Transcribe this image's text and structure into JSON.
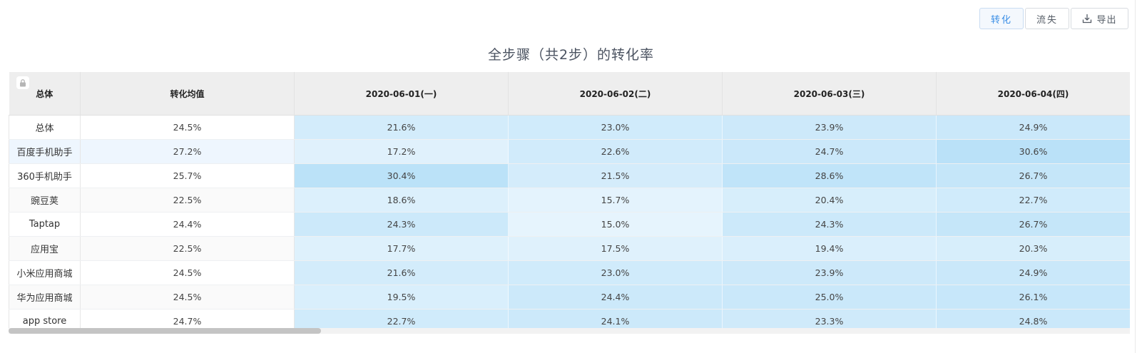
{
  "toolbar": {
    "conversion_label": "转化",
    "loss_label": "流失",
    "export_label": "导出"
  },
  "title": "全步骤（共2步）的转化率",
  "table": {
    "headers": {
      "name": "总体",
      "avg": "转化均值",
      "dates": [
        "2020-06-01(一)",
        "2020-06-02(二)",
        "2020-06-03(三)",
        "2020-06-04(四)"
      ]
    },
    "rows": [
      {
        "name": "总体",
        "avg": "24.5%",
        "values": [
          "21.6%",
          "23.0%",
          "23.9%",
          "24.9%"
        ]
      },
      {
        "name": "百度手机助手",
        "avg": "27.2%",
        "values": [
          "17.2%",
          "22.6%",
          "24.7%",
          "30.6%"
        ]
      },
      {
        "name": "360手机助手",
        "avg": "25.7%",
        "values": [
          "30.4%",
          "21.5%",
          "28.6%",
          "26.7%"
        ]
      },
      {
        "name": "豌豆荚",
        "avg": "22.5%",
        "values": [
          "18.6%",
          "15.7%",
          "20.4%",
          "22.7%"
        ]
      },
      {
        "name": "Taptap",
        "avg": "24.4%",
        "values": [
          "24.3%",
          "15.0%",
          "24.3%",
          "26.7%"
        ]
      },
      {
        "name": "应用宝",
        "avg": "22.5%",
        "values": [
          "17.7%",
          "17.5%",
          "19.4%",
          "20.3%"
        ]
      },
      {
        "name": "小米应用商城",
        "avg": "24.5%",
        "values": [
          "21.6%",
          "23.0%",
          "23.9%",
          "24.9%"
        ]
      },
      {
        "name": "华为应用商城",
        "avg": "24.5%",
        "values": [
          "19.5%",
          "24.4%",
          "25.0%",
          "26.1%"
        ]
      },
      {
        "name": "app store",
        "avg": "24.7%",
        "values": [
          "22.7%",
          "24.1%",
          "23.3%",
          "24.8%"
        ]
      }
    ]
  },
  "colors": {
    "accent": "#3a8ee6",
    "heat_low": "#e6f4fd",
    "heat_high": "#b9e1f8"
  },
  "icons": {
    "lock": "lock-icon",
    "export": "download-icon"
  }
}
